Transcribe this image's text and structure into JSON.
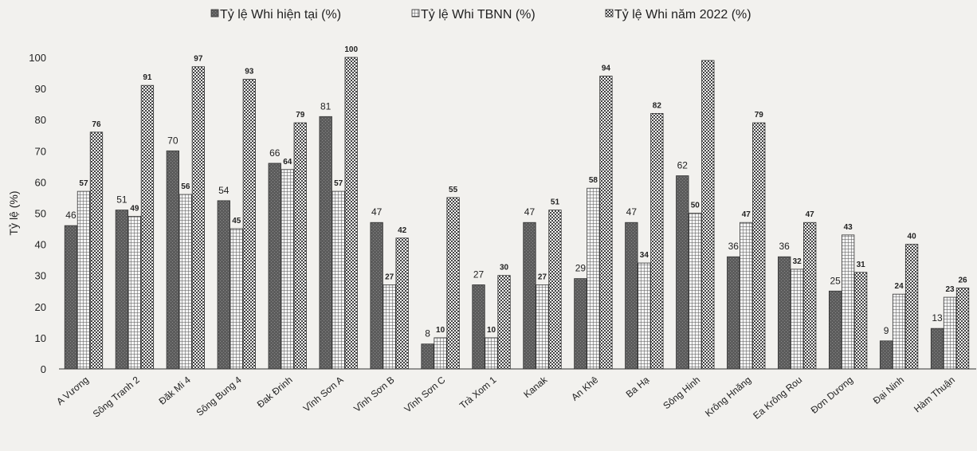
{
  "chart_data": {
    "type": "bar",
    "ylabel": "Tỷ lệ (%)",
    "ylim": [
      0,
      100
    ],
    "yticks": [
      "0",
      "10",
      "20",
      "30",
      "40",
      "50",
      "60",
      "70",
      "80",
      "90",
      "100"
    ],
    "grid": false,
    "legend_position": "top",
    "categories": [
      "A Vương",
      "Sông Tranh 2",
      "Đăk Mi 4",
      "Sông Bung 4",
      "Đak Đrinh",
      "Vĩnh Sơn A",
      "Vĩnh Sơn B",
      "Vĩnh Sơn C",
      "Trà Xom 1",
      "Kanak",
      "An Khê",
      "Ba Hạ",
      "Sông Hinh",
      "Krông Hnăng",
      "Ea Krông Rou",
      "Đơn Dương",
      "Đại Ninh",
      "Hàm Thuận"
    ],
    "series": [
      {
        "name": "Tỷ lệ Whi hiện tại (%)",
        "pattern": "dark",
        "values": [
          46,
          51,
          70,
          54,
          66,
          81,
          47,
          8,
          27,
          47,
          29,
          47,
          62,
          36,
          36,
          25,
          9,
          13
        ],
        "labels": [
          "46",
          "51",
          "70",
          "54",
          "66",
          "81",
          "47",
          "8",
          "27",
          "47",
          "29",
          "47",
          "62",
          "36",
          "36",
          "25",
          "9",
          "13"
        ]
      },
      {
        "name": "Tỷ lệ Whi TBNN (%)",
        "pattern": "grid",
        "values": [
          57,
          49,
          56,
          45,
          64,
          57,
          27,
          10,
          10,
          27,
          58,
          34,
          50,
          47,
          32,
          43,
          24,
          23
        ],
        "labels": [
          "57",
          "49",
          "56",
          "45",
          "64",
          "57",
          "27",
          "10",
          "10",
          "27",
          "58",
          "34",
          "50",
          "47",
          "32",
          "43",
          "24",
          "23"
        ]
      },
      {
        "name": "Tỷ lệ Whi năm 2022 (%)",
        "pattern": "dots",
        "values": [
          76,
          91,
          97,
          93,
          79,
          100,
          42,
          55,
          30,
          51,
          94,
          82,
          99,
          79,
          47,
          31,
          40,
          26
        ],
        "labels": [
          "76",
          "91",
          "97",
          "93",
          "79",
          "100",
          "42",
          "55",
          "30",
          "51",
          "94",
          "82",
          "",
          "79",
          "47",
          "31",
          "40",
          "26"
        ]
      }
    ]
  }
}
